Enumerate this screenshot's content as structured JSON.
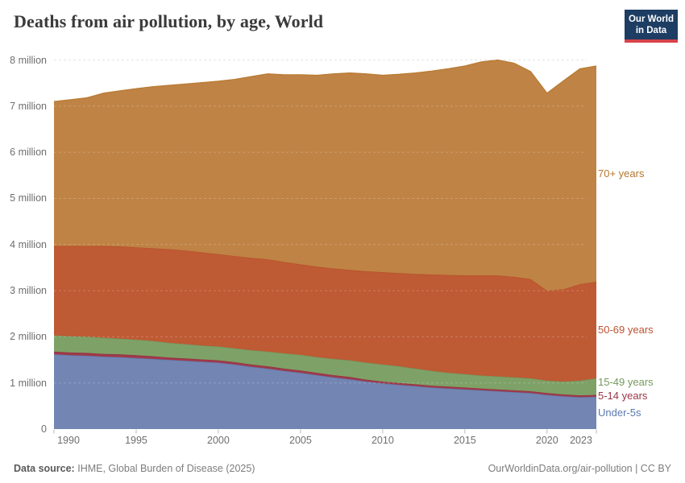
{
  "header": {
    "title": "Deaths from air pollution, by age, World",
    "logo": {
      "line1": "Our World",
      "line2": "in Data"
    }
  },
  "chart_data": {
    "type": "area",
    "stacked": true,
    "title": "Deaths from air pollution, by age, World",
    "unit": "deaths (millions)",
    "xlabel": "",
    "ylabel": "",
    "ylim": [
      0,
      8
    ],
    "grid": true,
    "legend_position": "right-edge-labels",
    "x": [
      1990,
      1991,
      1992,
      1993,
      1994,
      1995,
      1996,
      1997,
      1998,
      1999,
      2000,
      2001,
      2002,
      2003,
      2004,
      2005,
      2006,
      2007,
      2008,
      2009,
      2010,
      2011,
      2012,
      2013,
      2014,
      2015,
      2016,
      2017,
      2018,
      2019,
      2020,
      2021,
      2022,
      2023
    ],
    "x_ticks": [
      1990,
      1995,
      2000,
      2005,
      2010,
      2015,
      2020,
      2023
    ],
    "y_ticks": [
      {
        "value": 0,
        "label": "0"
      },
      {
        "value": 1,
        "label": "1 million"
      },
      {
        "value": 2,
        "label": "2 million"
      },
      {
        "value": 3,
        "label": "3 million"
      },
      {
        "value": 4,
        "label": "4 million"
      },
      {
        "value": 5,
        "label": "5 million"
      },
      {
        "value": 6,
        "label": "6 million"
      },
      {
        "value": 7,
        "label": "7 million"
      },
      {
        "value": 8,
        "label": "8 million"
      }
    ],
    "series": [
      {
        "name": "Under-5s",
        "color": "#7285b3",
        "line_color": "#6276ad",
        "label_color": "#5c7ab0",
        "values": [
          1.62,
          1.6,
          1.59,
          1.57,
          1.56,
          1.54,
          1.52,
          1.5,
          1.48,
          1.46,
          1.44,
          1.4,
          1.35,
          1.31,
          1.26,
          1.22,
          1.17,
          1.12,
          1.08,
          1.03,
          0.99,
          0.96,
          0.93,
          0.9,
          0.88,
          0.86,
          0.84,
          0.82,
          0.8,
          0.78,
          0.74,
          0.71,
          0.69,
          0.7
        ]
      },
      {
        "name": "5-14 years",
        "color": "#9e3a49",
        "line_color": "#963040",
        "label_color": "#9c3646",
        "values": [
          0.06,
          0.06,
          0.06,
          0.06,
          0.06,
          0.06,
          0.06,
          0.05,
          0.05,
          0.05,
          0.05,
          0.05,
          0.05,
          0.05,
          0.05,
          0.05,
          0.05,
          0.05,
          0.05,
          0.04,
          0.04,
          0.04,
          0.04,
          0.04,
          0.04,
          0.04,
          0.04,
          0.04,
          0.04,
          0.04,
          0.04,
          0.04,
          0.04,
          0.04
        ]
      },
      {
        "name": "15-49 years",
        "color": "#7ea168",
        "line_color": "#71975a",
        "label_color": "#74995c",
        "values": [
          0.35,
          0.35,
          0.35,
          0.35,
          0.34,
          0.34,
          0.33,
          0.32,
          0.31,
          0.3,
          0.3,
          0.3,
          0.31,
          0.32,
          0.33,
          0.34,
          0.34,
          0.35,
          0.36,
          0.37,
          0.37,
          0.36,
          0.34,
          0.32,
          0.3,
          0.29,
          0.28,
          0.28,
          0.28,
          0.28,
          0.27,
          0.28,
          0.32,
          0.36
        ]
      },
      {
        "name": "50-69 years",
        "color": "#be5a34",
        "line_color": "#b54f28",
        "label_color": "#bd5231",
        "values": [
          1.94,
          1.96,
          1.97,
          1.99,
          2.0,
          2.0,
          2.01,
          2.03,
          2.03,
          2.02,
          2.0,
          2.0,
          2.0,
          2.0,
          1.98,
          1.96,
          1.96,
          1.96,
          1.96,
          1.98,
          2.0,
          2.02,
          2.05,
          2.09,
          2.12,
          2.14,
          2.17,
          2.19,
          2.18,
          2.15,
          1.95,
          2.0,
          2.09,
          2.09
        ]
      },
      {
        "name": "70+ years",
        "color": "#bf8345",
        "line_color": "#b97a30",
        "label_color": "#b4762e",
        "values": [
          3.13,
          3.17,
          3.21,
          3.31,
          3.37,
          3.44,
          3.5,
          3.55,
          3.61,
          3.68,
          3.75,
          3.83,
          3.93,
          4.02,
          4.06,
          4.11,
          4.15,
          4.22,
          4.27,
          4.28,
          4.27,
          4.31,
          4.36,
          4.41,
          4.47,
          4.54,
          4.63,
          4.67,
          4.63,
          4.5,
          4.28,
          4.52,
          4.67,
          4.68
        ]
      }
    ],
    "grid_color": "#dddddd",
    "tick_color": "#b8b8b8",
    "axis_text_color": "#6e6e6e"
  },
  "footer": {
    "source_label": "Data source:",
    "source_text": "IHME, Global Burden of Disease (2025)",
    "credit": "OurWorldinData.org/air-pollution | CC BY"
  }
}
